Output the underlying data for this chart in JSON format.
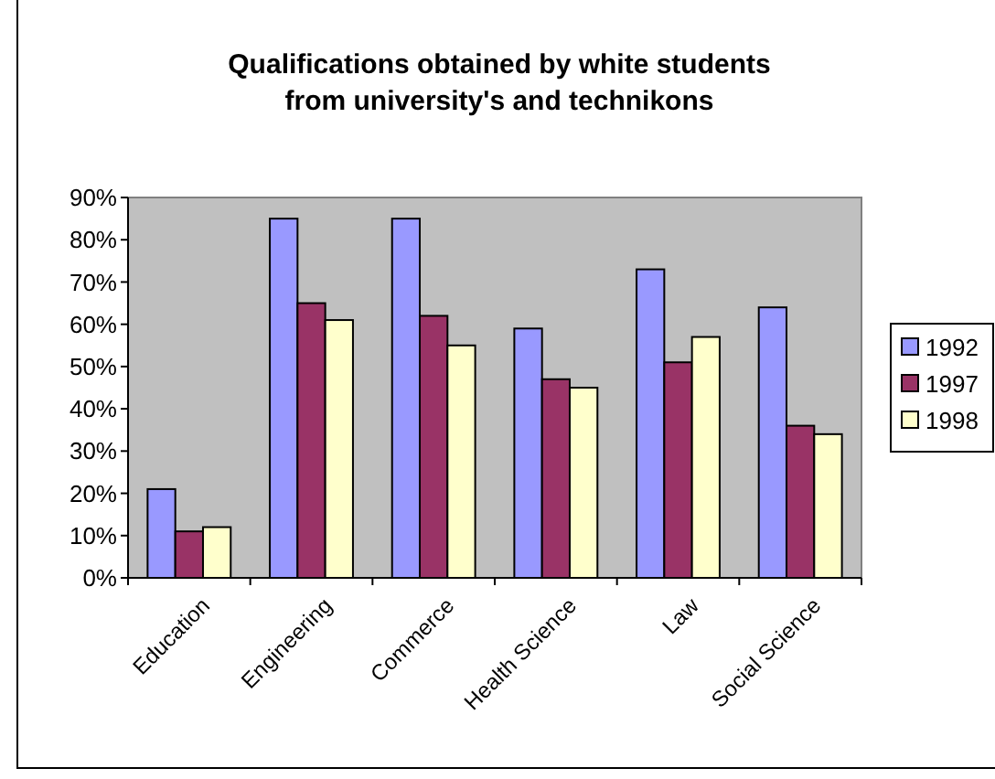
{
  "chart_data": {
    "type": "bar",
    "title": "Qualifications obtained by white students\nfrom university's and technikons",
    "categories": [
      "Education",
      "Engineering",
      "Commerce",
      "Health Science",
      "Law",
      "Social Science"
    ],
    "series": [
      {
        "name": "1992",
        "color": "#9999ff",
        "values": [
          21,
          85,
          85,
          59,
          73,
          64
        ]
      },
      {
        "name": "1997",
        "color": "#993366",
        "values": [
          11,
          65,
          62,
          47,
          51,
          36
        ]
      },
      {
        "name": "1998",
        "color": "#ffffcc",
        "values": [
          12,
          61,
          55,
          45,
          57,
          34
        ]
      }
    ],
    "ylim": [
      0,
      90
    ],
    "yticks": [
      {
        "value": 0,
        "label": "0%"
      },
      {
        "value": 10,
        "label": "10%"
      },
      {
        "value": 20,
        "label": "20%"
      },
      {
        "value": 30,
        "label": "30%"
      },
      {
        "value": 40,
        "label": "40%"
      },
      {
        "value": 50,
        "label": "50%"
      },
      {
        "value": 60,
        "label": "60%"
      },
      {
        "value": 70,
        "label": "70%"
      },
      {
        "value": 80,
        "label": "80%"
      },
      {
        "value": 90,
        "label": "90%"
      }
    ],
    "grid": false,
    "legend": "right"
  }
}
